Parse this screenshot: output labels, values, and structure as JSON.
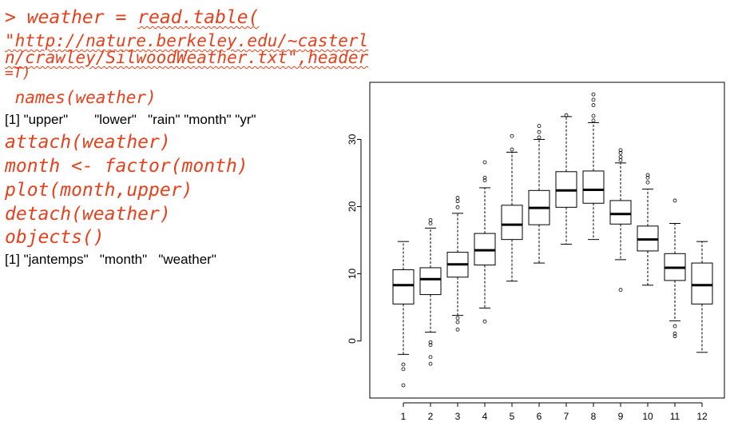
{
  "console": {
    "read_line_1_prefix": "> weather = ",
    "read_line_1_fn": "read.table(",
    "read_line_2": "\"http://nature.berkeley.edu/~casterl",
    "read_line_3": "n/crawley/SilwoodWeather.txt\",header",
    "read_line_4": "=T)",
    "names_cmd": " names(weather)",
    "names_output": "[1] \"upper\"       \"lower\"   \"rain\" \"month\" \"yr\"",
    "attach_cmd": "attach(weather)",
    "factor_cmd": "month <- factor(month)",
    "plot_cmd": "plot(month,upper)",
    "detach_cmd": "detach(weather)",
    "objects_cmd": "objects()",
    "objects_output": "[1] \"jantemps\"   \"month\"   \"weather\""
  },
  "colors": {
    "code": "#e8401c",
    "output": "#000000",
    "plot": "#000000"
  },
  "chart_data": {
    "type": "boxplot",
    "xlabel": "",
    "ylabel": "",
    "ylim": [
      -8.5,
      38.5
    ],
    "yticks": [
      0,
      10,
      20,
      30
    ],
    "categories": [
      "1",
      "2",
      "3",
      "4",
      "5",
      "6",
      "7",
      "8",
      "9",
      "10",
      "11",
      "12"
    ],
    "boxes": [
      {
        "lw": -2.0,
        "q1": 5.5,
        "med": 8.3,
        "q3": 10.6,
        "uw": 14.8,
        "out": [
          -3.5,
          -4.2,
          -6.6
        ]
      },
      {
        "lw": 1.3,
        "q1": 6.9,
        "med": 9.2,
        "q3": 10.9,
        "uw": 16.8,
        "out": [
          17.5,
          18.0,
          -0.2,
          -0.6,
          -2.4,
          -3.4
        ]
      },
      {
        "lw": 3.8,
        "q1": 9.5,
        "med": 11.4,
        "q3": 13.2,
        "uw": 19.0,
        "out": [
          19.9,
          20.8,
          21.3,
          3.4,
          2.8,
          1.7
        ]
      },
      {
        "lw": 4.9,
        "q1": 11.3,
        "med": 13.5,
        "q3": 16.0,
        "uw": 22.8,
        "out": [
          23.9,
          24.3,
          26.6,
          2.9
        ]
      },
      {
        "lw": 8.9,
        "q1": 15.1,
        "med": 17.3,
        "q3": 20.2,
        "uw": 28.1,
        "out": [
          28.5,
          30.5
        ]
      },
      {
        "lw": 11.6,
        "q1": 17.3,
        "med": 19.8,
        "q3": 22.4,
        "uw": 30.0,
        "out": [
          30.3,
          31.1,
          32.0
        ]
      },
      {
        "lw": 14.4,
        "q1": 19.9,
        "med": 22.4,
        "q3": 25.2,
        "uw": 33.4,
        "out": [
          33.6
        ]
      },
      {
        "lw": 15.1,
        "q1": 20.5,
        "med": 22.5,
        "q3": 25.3,
        "uw": 32.5,
        "out": [
          32.8,
          33.5,
          35.1,
          35.9,
          36.7
        ]
      },
      {
        "lw": 12.1,
        "q1": 17.4,
        "med": 18.9,
        "q3": 20.9,
        "uw": 26.5,
        "out": [
          26.9,
          27.4,
          28.0,
          28.4,
          7.6
        ]
      },
      {
        "lw": 8.3,
        "q1": 13.4,
        "med": 15.1,
        "q3": 17.1,
        "uw": 22.6,
        "out": [
          23.6,
          24.3,
          24.7
        ]
      },
      {
        "lw": 3.0,
        "q1": 9.0,
        "med": 10.9,
        "q3": 13.0,
        "uw": 17.5,
        "out": [
          20.9,
          2.2,
          1.1,
          0.7
        ]
      },
      {
        "lw": -1.7,
        "q1": 5.5,
        "med": 8.3,
        "q3": 11.6,
        "uw": 14.8,
        "out": []
      }
    ]
  }
}
